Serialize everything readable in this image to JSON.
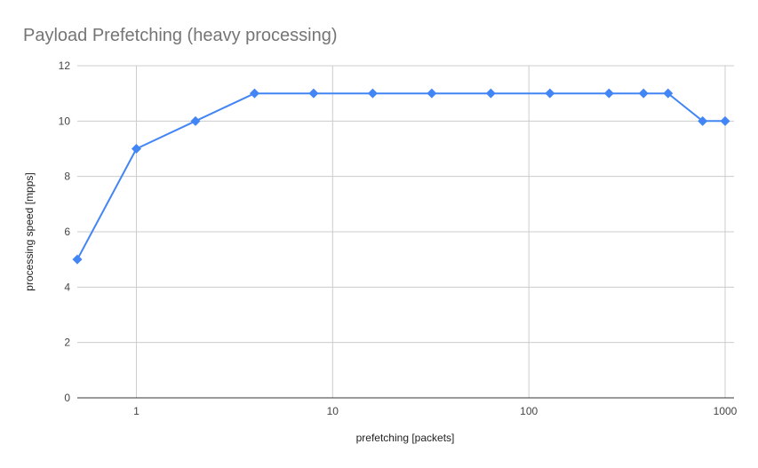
{
  "chart_data": {
    "type": "line",
    "title": "Payload Prefetching (heavy processing)",
    "xlabel": "prefetching [packets]",
    "ylabel": "processing speed [mpps]",
    "x_scale": "log",
    "xlim": [
      0.5,
      1000
    ],
    "ylim": [
      0,
      12
    ],
    "x_ticks": [
      {
        "value": 1,
        "label": "1"
      },
      {
        "value": 10,
        "label": "10"
      },
      {
        "value": 100,
        "label": "100"
      },
      {
        "value": 1000,
        "label": "1000"
      }
    ],
    "y_ticks": [
      {
        "value": 0,
        "label": "0"
      },
      {
        "value": 2,
        "label": "2"
      },
      {
        "value": 4,
        "label": "4"
      },
      {
        "value": 6,
        "label": "6"
      },
      {
        "value": 8,
        "label": "8"
      },
      {
        "value": 10,
        "label": "10"
      },
      {
        "value": 12,
        "label": "12"
      }
    ],
    "grid": true,
    "legend": "none",
    "series": [
      {
        "color": "#4285f4",
        "marker": "diamond",
        "x": [
          0.5,
          1,
          2,
          4,
          8,
          16,
          32,
          64,
          128,
          256,
          384,
          512,
          768,
          1000
        ],
        "y": [
          5,
          9,
          10,
          11,
          11,
          11,
          11,
          11,
          11,
          11,
          11,
          11,
          10,
          10
        ]
      }
    ]
  }
}
